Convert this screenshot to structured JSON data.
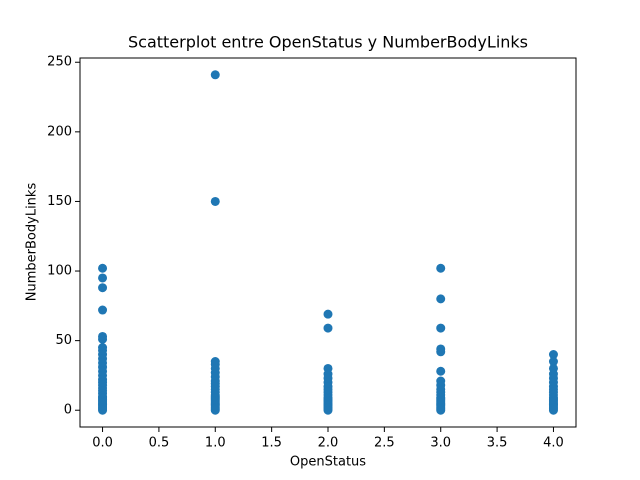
{
  "chart_data": {
    "type": "scatter",
    "title": "Scatterplot entre OpenStatus y NumberBodyLinks",
    "x_label": "OpenStatus",
    "y_label": "NumberBodyLinks",
    "color": "#1f77b4",
    "x": [
      0,
      0,
      0,
      0,
      0,
      0,
      0,
      0,
      0,
      0,
      0,
      0,
      0,
      0,
      0,
      0,
      0,
      0,
      0,
      0,
      0,
      0,
      0,
      0,
      0,
      0,
      0,
      0,
      0,
      0,
      0,
      1,
      1,
      1,
      1,
      1,
      1,
      1,
      1,
      1,
      1,
      1,
      1,
      1,
      1,
      1,
      1,
      1,
      1,
      1,
      1,
      1,
      1,
      1,
      1,
      2,
      2,
      2,
      2,
      2,
      2,
      2,
      2,
      2,
      2,
      2,
      2,
      2,
      2,
      2,
      2,
      2,
      2,
      2,
      2,
      3,
      3,
      3,
      3,
      3,
      3,
      3,
      3,
      3,
      3,
      3,
      3,
      3,
      3,
      3,
      3,
      3,
      3,
      3,
      3,
      3,
      4,
      4,
      4,
      4,
      4,
      4,
      4,
      4,
      4,
      4,
      4,
      4,
      4,
      4,
      4,
      4,
      4,
      4,
      4,
      4
    ],
    "values": [
      102,
      95,
      88,
      72,
      53,
      51,
      45,
      43,
      40,
      37,
      34,
      31,
      28,
      25,
      22,
      20,
      18,
      16,
      14,
      12,
      10,
      9,
      8,
      7,
      6,
      5,
      4,
      3,
      2,
      1,
      0,
      241,
      150,
      35,
      33,
      30,
      27,
      24,
      21,
      19,
      17,
      15,
      13,
      11,
      10,
      9,
      8,
      7,
      6,
      5,
      4,
      3,
      2,
      1,
      0,
      69,
      59,
      30,
      26,
      23,
      20,
      17,
      15,
      13,
      11,
      9,
      8,
      7,
      6,
      5,
      4,
      3,
      2,
      1,
      0,
      102,
      80,
      59,
      44,
      42,
      28,
      21,
      18,
      15,
      13,
      11,
      9,
      8,
      7,
      6,
      5,
      4,
      3,
      2,
      1,
      0,
      40,
      35,
      30,
      26,
      23,
      20,
      17,
      15,
      13,
      11,
      9,
      8,
      7,
      6,
      5,
      4,
      3,
      2,
      1,
      0
    ],
    "xlim": [
      -0.2,
      4.2
    ],
    "ylim": [
      -12.05,
      253.05
    ],
    "xticks": [
      {
        "value": 0,
        "label": "0.0"
      },
      0.5,
      {
        "value": 1,
        "label": "1.0"
      },
      1.5,
      {
        "value": 2,
        "label": "2.0"
      },
      2.5,
      {
        "value": 3,
        "label": "3.0"
      },
      3.5,
      {
        "value": 4,
        "label": "4.0"
      }
    ],
    "yticks": [
      0,
      50,
      100,
      150,
      200,
      250
    ]
  }
}
